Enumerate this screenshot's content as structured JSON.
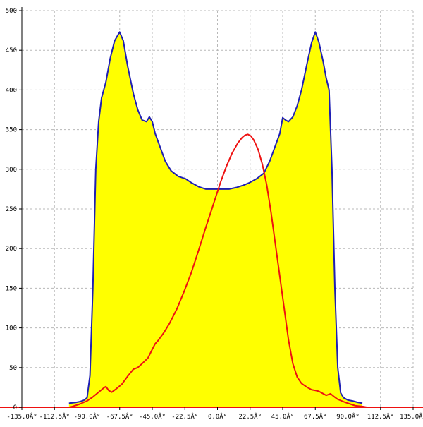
{
  "chart_data": {
    "type": "area",
    "title": "",
    "xlabel": "",
    "ylabel": "",
    "xlim": [
      -135,
      135
    ],
    "ylim": [
      0,
      500
    ],
    "grid": true,
    "x_tick_values": [
      -135,
      -112.5,
      -90,
      -67.5,
      -45,
      -22.5,
      0,
      22.5,
      45,
      67.5,
      90,
      112.5,
      135
    ],
    "x_tick_labels": [
      "-135.0Â°",
      "-112.5Â°",
      "-90.0Â°",
      "-67.5Â°",
      "-45.0Â°",
      "-22.5Â°",
      "0.0Â°",
      "22.5Â°",
      "45.0Â°",
      "67.5Â°",
      "90.0Â°",
      "112.5Â°",
      "135.0Â°"
    ],
    "y_tick_values": [
      0,
      50,
      100,
      150,
      200,
      250,
      300,
      350,
      400,
      450,
      500
    ],
    "y_tick_labels": [
      "0",
      "50",
      "100",
      "150",
      "200",
      "250",
      "300",
      "350",
      "400",
      "450",
      "500"
    ],
    "series": [
      {
        "color": "#1f1fb4",
        "fill": "#ffff00",
        "points": [
          [
            -102.5,
            5
          ],
          [
            -98,
            6
          ],
          [
            -95,
            7
          ],
          [
            -92,
            9
          ],
          [
            -90,
            12
          ],
          [
            -88,
            40
          ],
          [
            -86,
            150
          ],
          [
            -84,
            300
          ],
          [
            -82,
            360
          ],
          [
            -80,
            390
          ],
          [
            -77,
            410
          ],
          [
            -74,
            440
          ],
          [
            -71,
            462
          ],
          [
            -67.5,
            473
          ],
          [
            -65,
            462
          ],
          [
            -62,
            430
          ],
          [
            -58,
            395
          ],
          [
            -55,
            375
          ],
          [
            -52,
            362
          ],
          [
            -49,
            360
          ],
          [
            -47,
            366
          ],
          [
            -45,
            360
          ],
          [
            -43,
            345
          ],
          [
            -40,
            330
          ],
          [
            -36,
            310
          ],
          [
            -32,
            298
          ],
          [
            -27,
            291
          ],
          [
            -22,
            288
          ],
          [
            -18,
            283
          ],
          [
            -13,
            278
          ],
          [
            -8,
            275
          ],
          [
            0,
            275
          ],
          [
            8,
            275
          ],
          [
            13,
            277
          ],
          [
            18,
            280
          ],
          [
            22,
            283
          ],
          [
            27,
            288
          ],
          [
            32,
            295
          ],
          [
            36,
            310
          ],
          [
            40,
            330
          ],
          [
            43,
            345
          ],
          [
            45,
            365
          ],
          [
            47,
            362
          ],
          [
            49,
            360
          ],
          [
            52,
            366
          ],
          [
            55,
            380
          ],
          [
            58,
            400
          ],
          [
            62,
            435
          ],
          [
            65,
            460
          ],
          [
            67.5,
            473
          ],
          [
            70,
            460
          ],
          [
            73,
            435
          ],
          [
            75,
            415
          ],
          [
            77,
            400
          ],
          [
            79,
            300
          ],
          [
            81,
            150
          ],
          [
            83,
            50
          ],
          [
            85,
            18
          ],
          [
            87,
            12
          ],
          [
            90,
            9
          ],
          [
            93,
            8
          ],
          [
            97,
            6
          ],
          [
            100,
            5
          ]
        ]
      },
      {
        "color": "#ee1111",
        "fill": "none",
        "points": [
          [
            -140,
            0
          ],
          [
            -102,
            0
          ],
          [
            -100,
            1
          ],
          [
            -95,
            4
          ],
          [
            -90,
            8
          ],
          [
            -86,
            13
          ],
          [
            -82,
            19
          ],
          [
            -78,
            25
          ],
          [
            -77,
            26
          ],
          [
            -75,
            21
          ],
          [
            -73,
            19
          ],
          [
            -70,
            23
          ],
          [
            -66,
            29
          ],
          [
            -62,
            39
          ],
          [
            -58,
            48
          ],
          [
            -55,
            50
          ],
          [
            -52,
            55
          ],
          [
            -48,
            62
          ],
          [
            -45,
            73
          ],
          [
            -43,
            80
          ],
          [
            -41,
            84
          ],
          [
            -37,
            94
          ],
          [
            -33,
            106
          ],
          [
            -28,
            124
          ],
          [
            -23,
            146
          ],
          [
            -18,
            170
          ],
          [
            -13,
            198
          ],
          [
            -8,
            227
          ],
          [
            -3,
            255
          ],
          [
            2,
            283
          ],
          [
            6,
            303
          ],
          [
            10,
            320
          ],
          [
            14,
            333
          ],
          [
            17,
            340
          ],
          [
            19,
            343
          ],
          [
            21,
            344
          ],
          [
            23,
            342
          ],
          [
            25,
            337
          ],
          [
            28,
            325
          ],
          [
            31,
            306
          ],
          [
            34,
            280
          ],
          [
            37,
            245
          ],
          [
            40,
            205
          ],
          [
            43,
            165
          ],
          [
            46,
            125
          ],
          [
            49,
            85
          ],
          [
            52,
            55
          ],
          [
            55,
            38
          ],
          [
            58,
            30
          ],
          [
            62,
            25
          ],
          [
            65,
            22
          ],
          [
            68,
            21
          ],
          [
            70,
            20
          ],
          [
            72,
            18
          ],
          [
            75,
            15
          ],
          [
            78,
            17
          ],
          [
            80,
            14
          ],
          [
            83,
            10
          ],
          [
            87,
            7
          ],
          [
            90,
            5
          ],
          [
            95,
            2
          ],
          [
            100,
            1
          ],
          [
            103,
            0
          ],
          [
            140,
            0
          ]
        ]
      }
    ]
  }
}
